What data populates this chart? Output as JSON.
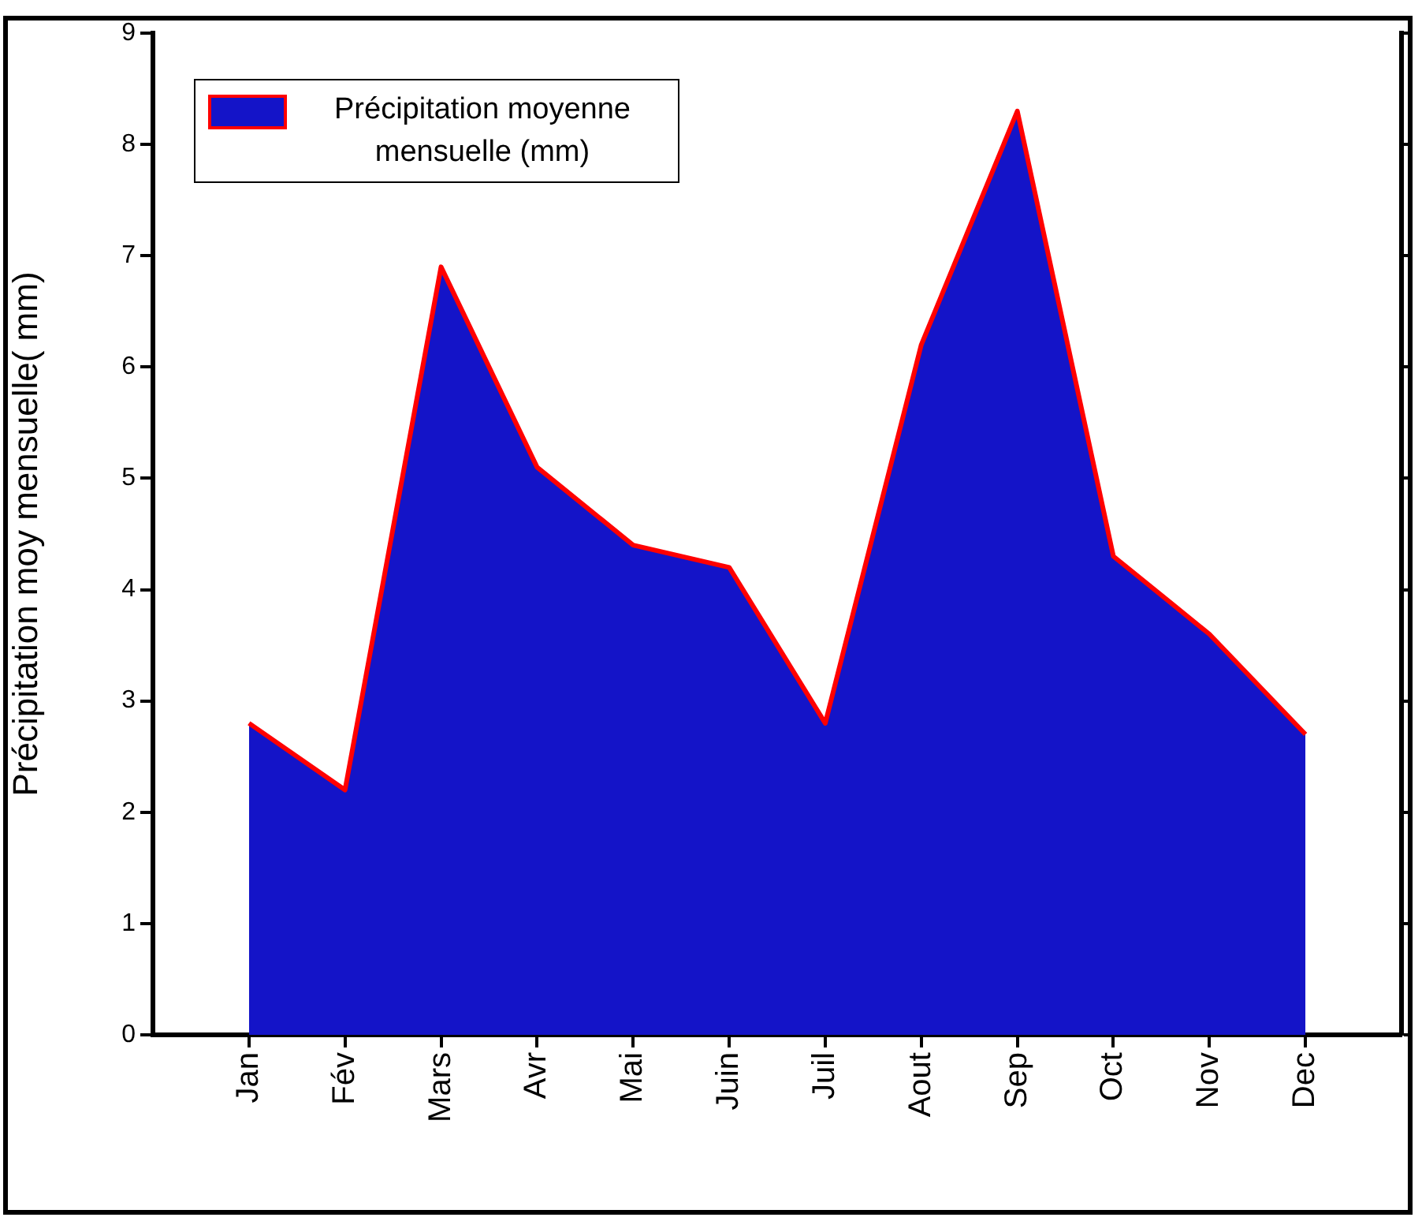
{
  "chart_data": {
    "type": "area",
    "ylabel": "Précipitation moy mensuelle( mm)",
    "categories": [
      "Jan",
      "Fév",
      "Mars",
      "Avr",
      "Mai",
      "Juin",
      "Juil",
      "Aout",
      "Sep",
      "Oct",
      "Nov",
      "Dec"
    ],
    "series": [
      {
        "name": "Précipitation moyenne mensuelle (mm)",
        "color": "#1414c8",
        "values": [
          2.8,
          2.2,
          6.9,
          5.1,
          4.4,
          4.2,
          2.8,
          6.2,
          8.3,
          4.3,
          3.6,
          2.7
        ]
      },
      {
        "type": "line",
        "color": "#ff0000",
        "values": [
          2.8,
          2.2,
          6.9,
          5.1,
          4.4,
          4.2,
          2.8,
          6.2,
          8.3,
          4.3,
          3.6,
          2.7
        ]
      }
    ],
    "ylim": [
      0,
      9
    ],
    "yticks": [
      0,
      1,
      2,
      3,
      4,
      5,
      6,
      7,
      8,
      9
    ],
    "grid": false,
    "legend": "top left"
  }
}
